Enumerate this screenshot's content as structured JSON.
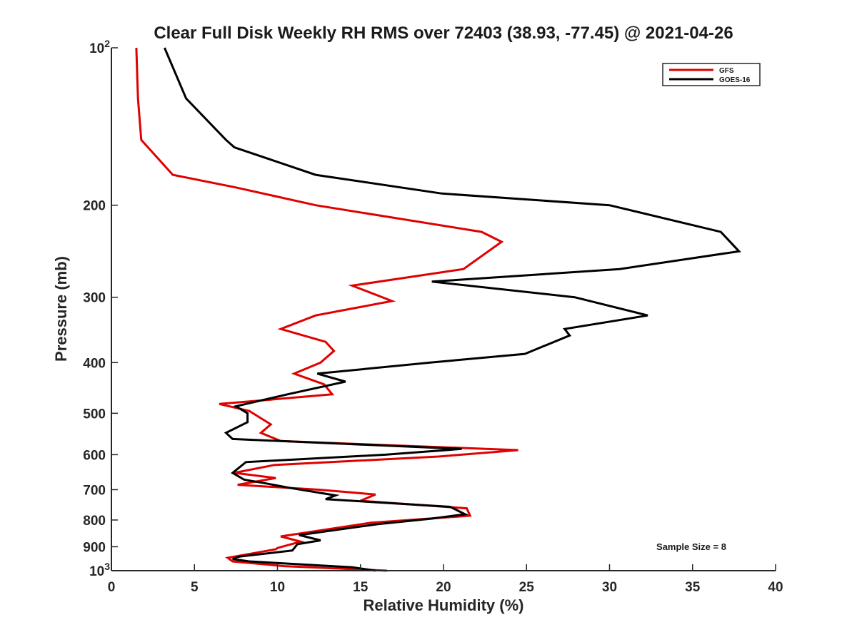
{
  "chart_data": {
    "type": "line",
    "title": "Clear Full Disk Weekly RH RMS over 72403 (38.93, -77.45) @ 2021-04-26",
    "xlabel": "Relative Humidity (%)",
    "ylabel": "Pressure (mb)",
    "xlim": [
      0,
      40
    ],
    "ylim": [
      100,
      1000
    ],
    "yscale": "log",
    "y_reversed": true,
    "x_ticks": [
      0,
      5,
      10,
      15,
      20,
      25,
      30,
      35,
      40
    ],
    "y_ticks": [
      {
        "value": 100,
        "label": "10",
        "sup": "2"
      },
      {
        "value": 200,
        "label": "200"
      },
      {
        "value": 300,
        "label": "300"
      },
      {
        "value": 400,
        "label": "400"
      },
      {
        "value": 500,
        "label": "500"
      },
      {
        "value": 600,
        "label": "600"
      },
      {
        "value": 700,
        "label": "700"
      },
      {
        "value": 800,
        "label": "800"
      },
      {
        "value": 900,
        "label": "900"
      },
      {
        "value": 1000,
        "label": "10",
        "sup": "3"
      }
    ],
    "grid": false,
    "legend_position": "top-right",
    "annotation": "Sample Size = 8",
    "series": [
      {
        "name": "GFS",
        "color": "#e00000",
        "points": [
          [
            1.5,
            100
          ],
          [
            1.6,
            125
          ],
          [
            1.8,
            150
          ],
          [
            3.7,
            175
          ],
          [
            7.5,
            185
          ],
          [
            12.3,
            200
          ],
          [
            22.3,
            225
          ],
          [
            23.5,
            235
          ],
          [
            21.2,
            265
          ],
          [
            14.5,
            285
          ],
          [
            16.9,
            305
          ],
          [
            12.3,
            325
          ],
          [
            10.2,
            345
          ],
          [
            12.9,
            365
          ],
          [
            13.4,
            380
          ],
          [
            12.6,
            400
          ],
          [
            11.0,
            420
          ],
          [
            12.8,
            440
          ],
          [
            13.3,
            460
          ],
          [
            8.2,
            475
          ],
          [
            6.5,
            480
          ],
          [
            8.3,
            495
          ],
          [
            9.6,
            525
          ],
          [
            9.0,
            545
          ],
          [
            10.2,
            565
          ],
          [
            24.5,
            588
          ],
          [
            19.7,
            605
          ],
          [
            9.8,
            628
          ],
          [
            7.4,
            650
          ],
          [
            9.9,
            665
          ],
          [
            7.6,
            685
          ],
          [
            12.5,
            700
          ],
          [
            15.9,
            715
          ],
          [
            15.0,
            735
          ],
          [
            21.4,
            760
          ],
          [
            21.6,
            785
          ],
          [
            15.6,
            810
          ],
          [
            10.2,
            860
          ],
          [
            11.4,
            880
          ],
          [
            10.0,
            905
          ],
          [
            9.9,
            910
          ],
          [
            7.0,
            945
          ],
          [
            7.3,
            960
          ],
          [
            10.4,
            980
          ],
          [
            16.6,
            1000
          ]
        ]
      },
      {
        "name": "GOES-16",
        "color": "#000000",
        "points": [
          [
            3.2,
            100
          ],
          [
            4.5,
            125
          ],
          [
            6.9,
            150
          ],
          [
            7.4,
            155
          ],
          [
            12.3,
            175
          ],
          [
            19.9,
            190
          ],
          [
            30.0,
            200
          ],
          [
            36.7,
            225
          ],
          [
            37.8,
            245
          ],
          [
            30.6,
            265
          ],
          [
            19.3,
            280
          ],
          [
            27.9,
            300
          ],
          [
            32.3,
            325
          ],
          [
            27.3,
            345
          ],
          [
            27.6,
            355
          ],
          [
            24.9,
            385
          ],
          [
            19.2,
            400
          ],
          [
            12.4,
            420
          ],
          [
            14.1,
            435
          ],
          [
            10.6,
            460
          ],
          [
            8.1,
            480
          ],
          [
            7.5,
            485
          ],
          [
            8.2,
            500
          ],
          [
            8.2,
            520
          ],
          [
            6.9,
            545
          ],
          [
            7.3,
            560
          ],
          [
            21.1,
            585
          ],
          [
            16.5,
            600
          ],
          [
            8.1,
            620
          ],
          [
            7.3,
            650
          ],
          [
            8.0,
            670
          ],
          [
            9.2,
            680
          ],
          [
            10.8,
            695
          ],
          [
            13.5,
            718
          ],
          [
            12.9,
            730
          ],
          [
            20.4,
            755
          ],
          [
            21.3,
            780
          ],
          [
            19.3,
            795
          ],
          [
            16.0,
            815
          ],
          [
            11.3,
            855
          ],
          [
            12.6,
            875
          ],
          [
            11.2,
            890
          ],
          [
            10.9,
            915
          ],
          [
            7.7,
            940
          ],
          [
            7.3,
            950
          ],
          [
            8.3,
            960
          ],
          [
            14.5,
            985
          ],
          [
            15.9,
            1000
          ]
        ]
      }
    ]
  }
}
